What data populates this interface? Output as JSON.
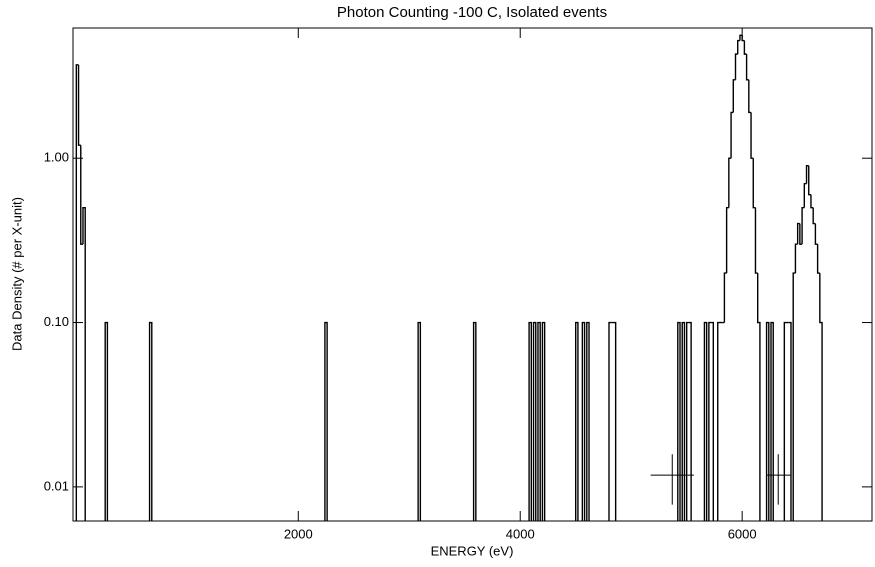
{
  "chart_data": {
    "type": "histogram",
    "title": "Photon Counting -100 C, Isolated events",
    "x_label": "ENERGY (eV)",
    "y_label": "Data Density (# per X-unit)",
    "log_y": true,
    "color": "#000000",
    "x": [
      10,
      30,
      50,
      70,
      270,
      670,
      2250,
      3090,
      3590,
      4090,
      4130,
      4170,
      4210,
      4510,
      4570,
      4610,
      4810,
      4830,
      4850,
      5430,
      5470,
      5510,
      5530,
      5670,
      5710,
      5730,
      5790,
      5810,
      5830,
      5850,
      5870,
      5890,
      5910,
      5930,
      5950,
      5970,
      5990,
      6010,
      6030,
      6050,
      6070,
      6090,
      6110,
      6130,
      6150,
      6230,
      6270,
      6390,
      6410,
      6430,
      6470,
      6490,
      6510,
      6530,
      6550,
      6570,
      6590,
      6610,
      6630,
      6650,
      6670,
      6690,
      6710
    ],
    "values": [
      3.7,
      1.2,
      0.3,
      0.5,
      0.1,
      0.1,
      0.1,
      0.1,
      0.1,
      0.1,
      0.1,
      0.1,
      0.1,
      0.1,
      0.1,
      0.1,
      0.1,
      0.1,
      0.1,
      0.1,
      0.1,
      0.1,
      0.1,
      0.1,
      0.1,
      0.1,
      0.1,
      0.1,
      0.1,
      0.2,
      0.5,
      1.0,
      1.9,
      3.0,
      4.3,
      5.2,
      5.6,
      5.2,
      4.3,
      3.0,
      1.9,
      1.0,
      0.5,
      0.2,
      0.1,
      0.1,
      0.1,
      0.1,
      0.1,
      0.1,
      0.2,
      0.3,
      0.4,
      0.3,
      0.5,
      0.7,
      0.9,
      0.6,
      0.5,
      0.4,
      0.3,
      0.2,
      0.1
    ],
    "errorbars": {
      "x": [
        5370,
        6325
      ],
      "y": [
        0.0118,
        0.0118
      ],
      "xerr": [
        195,
        110
      ],
      "yerr": [
        0.004,
        0.004
      ]
    },
    "xlim": [
      -30,
      7170
    ],
    "ylim": [
      0.0062,
      6.2
    ],
    "xticks": [
      2000,
      4000,
      6000
    ],
    "yticks": [
      {
        "value": 1,
        "label": "1.00"
      },
      {
        "value": 0.1,
        "label": "0.10"
      },
      {
        "value": 0.01,
        "label": "0.01"
      }
    ]
  }
}
